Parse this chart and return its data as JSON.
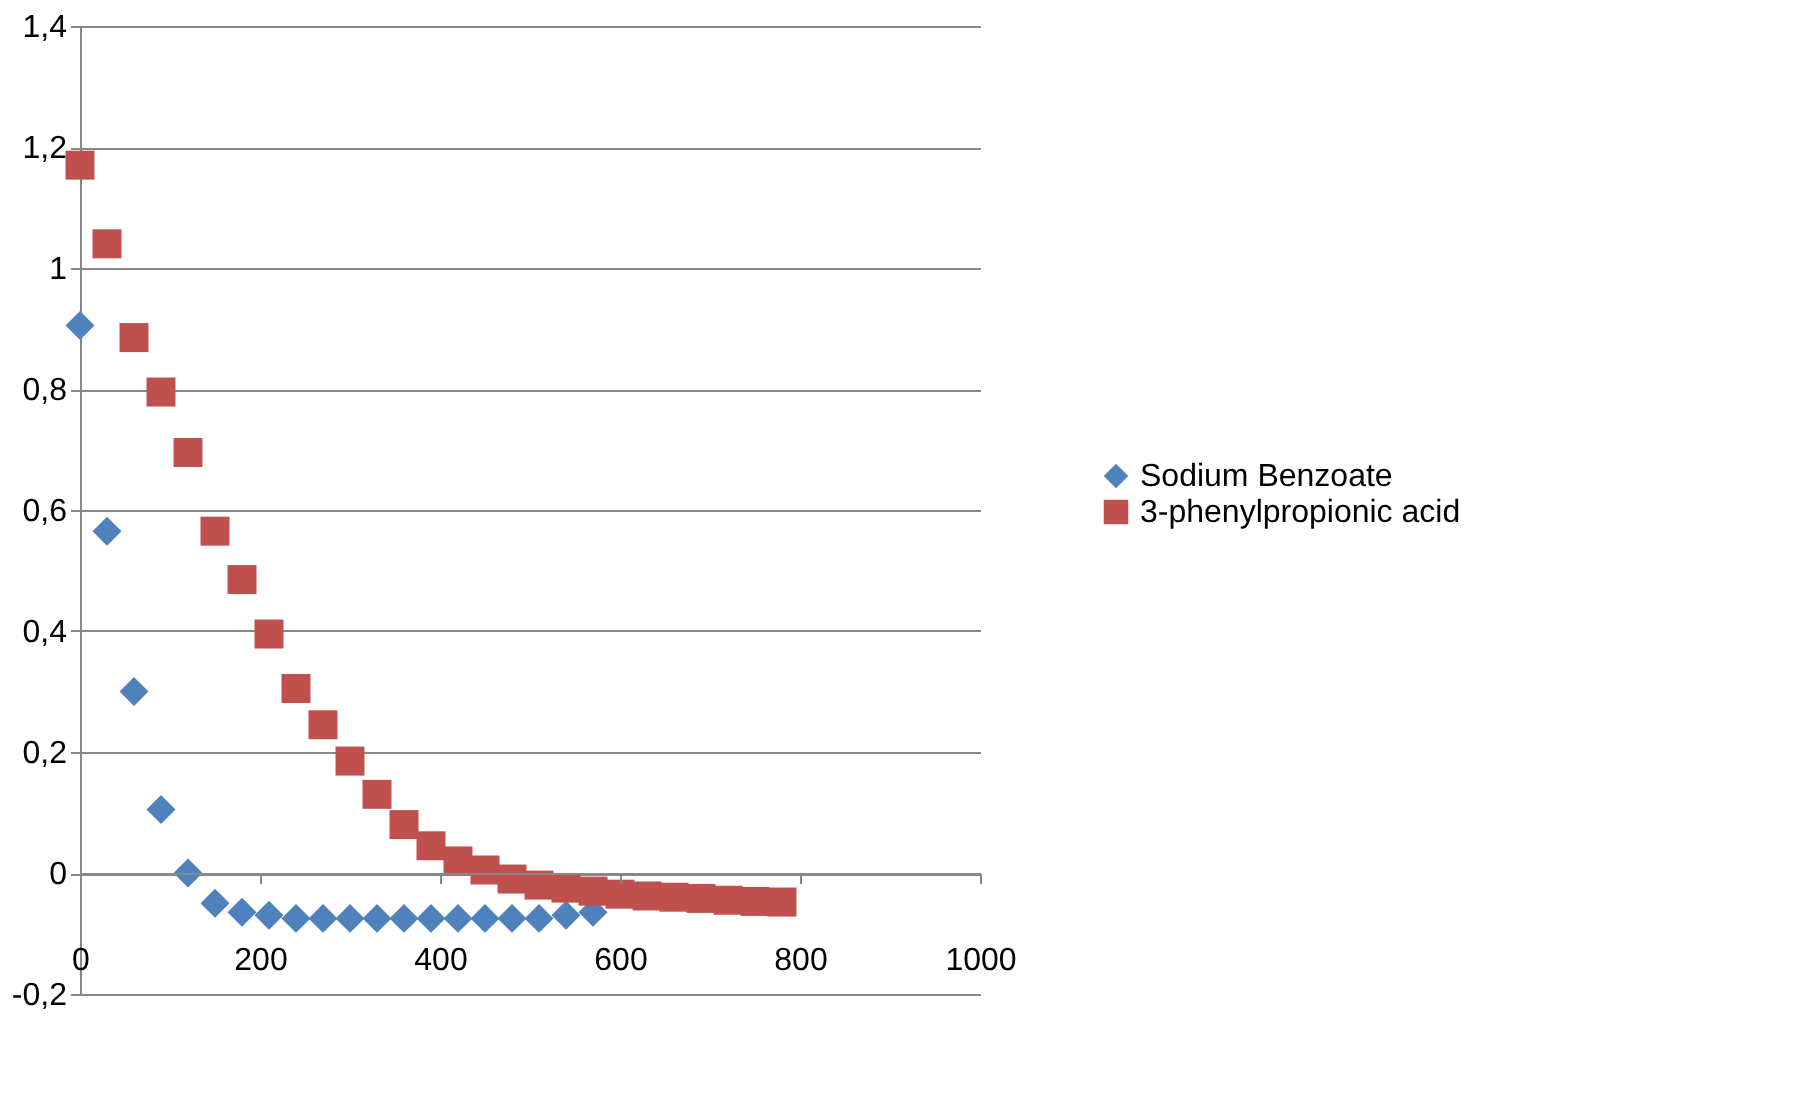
{
  "chart_data": {
    "type": "scatter",
    "xlim": [
      0,
      1000
    ],
    "xticks": [
      0,
      200,
      400,
      600,
      800,
      1000
    ],
    "ylim": [
      -0.2,
      1.4
    ],
    "yticks": [
      {
        "value": -0.2,
        "label": "-0,2"
      },
      {
        "value": 0,
        "label": "0"
      },
      {
        "value": 0.2,
        "label": "0,2"
      },
      {
        "value": 0.4,
        "label": "0,4"
      },
      {
        "value": 0.6,
        "label": "0,6"
      },
      {
        "value": 0.8,
        "label": "0,8"
      },
      {
        "value": 1,
        "label": "1"
      },
      {
        "value": 1.2,
        "label": "1,2"
      },
      {
        "value": 1.4,
        "label": "1,4"
      }
    ],
    "grid": "y",
    "legend": "right",
    "series": [
      {
        "name": "Sodium Benzoate",
        "color": "#4f81bd",
        "marker": "diamond",
        "x": [
          0,
          30,
          60,
          90,
          120,
          150,
          180,
          210,
          240,
          270,
          300,
          330,
          360,
          390,
          420,
          450,
          480,
          510,
          540,
          570
        ],
        "values": [
          0.905,
          0.565,
          0.3,
          0.105,
          0.0,
          -0.05,
          -0.065,
          -0.07,
          -0.075,
          -0.075,
          -0.075,
          -0.075,
          -0.075,
          -0.075,
          -0.075,
          -0.075,
          -0.075,
          -0.075,
          -0.07,
          -0.065
        ]
      },
      {
        "name": "3-phenylpropionic acid",
        "color": "#c0504d",
        "marker": "square",
        "x": [
          0,
          30,
          60,
          90,
          120,
          150,
          180,
          210,
          240,
          270,
          300,
          330,
          360,
          390,
          420,
          450,
          480,
          510,
          540,
          570,
          600,
          630,
          660,
          690,
          720,
          750,
          780
        ],
        "values": [
          1.17,
          1.04,
          0.885,
          0.795,
          0.695,
          0.565,
          0.485,
          0.395,
          0.305,
          0.245,
          0.185,
          0.13,
          0.08,
          0.045,
          0.02,
          0.005,
          -0.01,
          -0.02,
          -0.025,
          -0.03,
          -0.035,
          -0.038,
          -0.04,
          -0.042,
          -0.045,
          -0.047,
          -0.048
        ]
      }
    ]
  }
}
